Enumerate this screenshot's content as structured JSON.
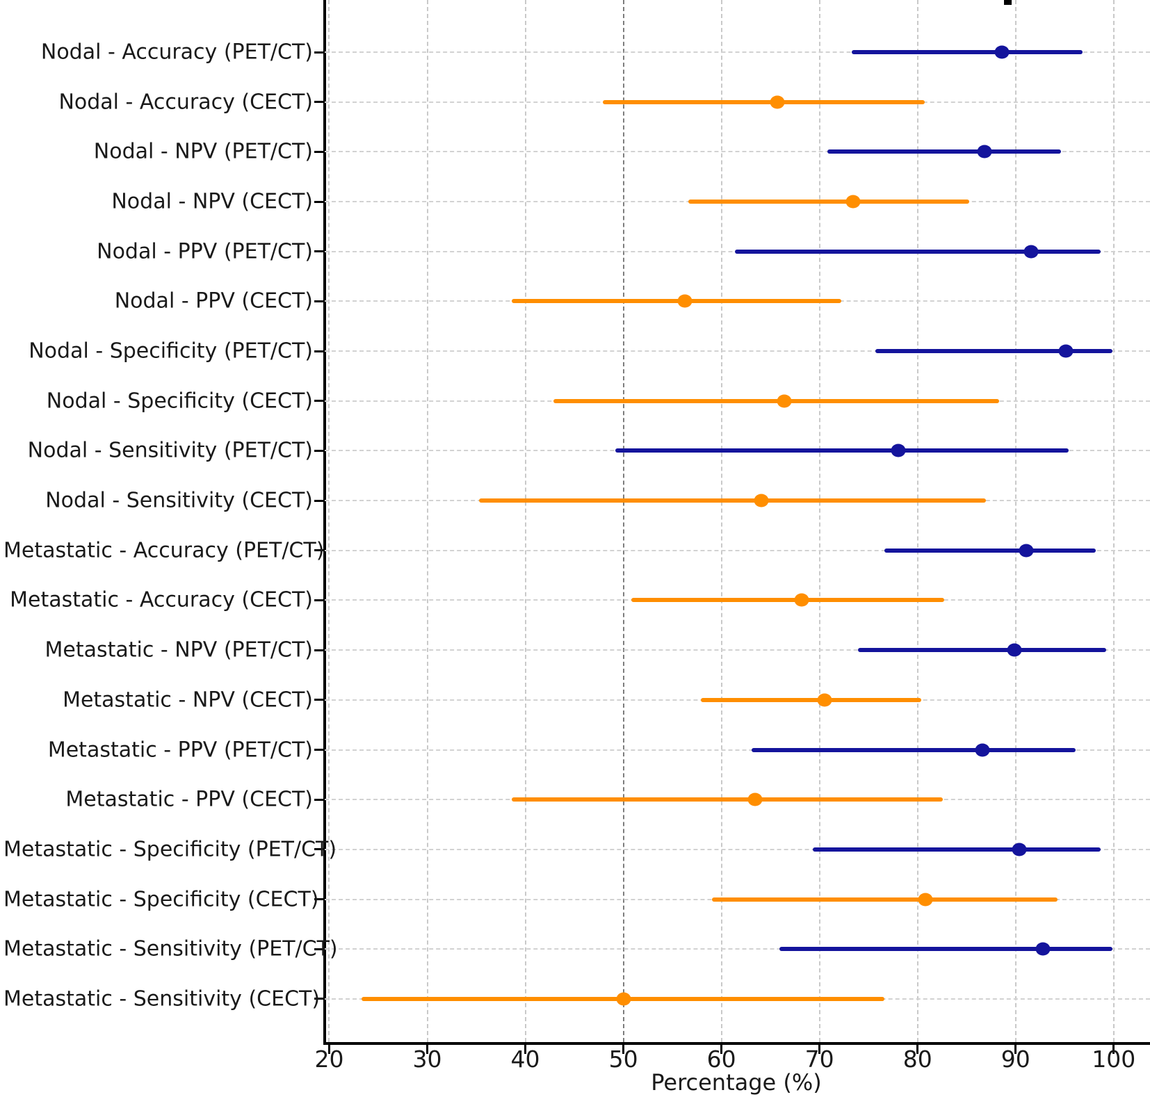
{
  "chart_data": {
    "type": "forest_dot_ci",
    "xlabel": "Percentage (%)",
    "xlim": [
      19.4,
      103.7
    ],
    "xticks": [
      20,
      30,
      40,
      50,
      60,
      70,
      80,
      90,
      100
    ],
    "refline_x": 50,
    "grid": true,
    "legend_position": "cropped-top-right",
    "colors": {
      "PET/CT": "#14149c",
      "CECT": "#ff8e00"
    },
    "rows": [
      {
        "label": "Nodal - Accuracy (PET/CT)",
        "modality": "PET/CT",
        "value": 88.6,
        "ci": [
          73.3,
          96.8
        ]
      },
      {
        "label": "Nodal - Accuracy (CECT)",
        "modality": "CECT",
        "value": 65.7,
        "ci": [
          47.9,
          80.7
        ]
      },
      {
        "label": "Nodal - NPV (PET/CT)",
        "modality": "PET/CT",
        "value": 86.8,
        "ci": [
          70.8,
          94.6
        ]
      },
      {
        "label": "Nodal - NPV (CECT)",
        "modality": "CECT",
        "value": 73.4,
        "ci": [
          56.6,
          85.3
        ]
      },
      {
        "label": "Nodal - PPV (PET/CT)",
        "modality": "PET/CT",
        "value": 91.6,
        "ci": [
          61.4,
          98.7
        ]
      },
      {
        "label": "Nodal - PPV (CECT)",
        "modality": "CECT",
        "value": 56.3,
        "ci": [
          38.6,
          72.2
        ]
      },
      {
        "label": "Nodal - Specificity (PET/CT)",
        "modality": "PET/CT",
        "value": 95.1,
        "ci": [
          75.7,
          99.9
        ]
      },
      {
        "label": "Nodal - Specificity (CECT)",
        "modality": "CECT",
        "value": 66.4,
        "ci": [
          42.9,
          88.3
        ]
      },
      {
        "label": "Nodal - Sensitivity (PET/CT)",
        "modality": "PET/CT",
        "value": 78.0,
        "ci": [
          49.2,
          95.4
        ]
      },
      {
        "label": "Nodal - Sensitivity (CECT)",
        "modality": "CECT",
        "value": 64.1,
        "ci": [
          35.3,
          87.0
        ]
      },
      {
        "label": "Metastatic - Accuracy (PET/CT)",
        "modality": "PET/CT",
        "value": 91.1,
        "ci": [
          76.6,
          98.2
        ]
      },
      {
        "label": "Metastatic - Accuracy (CECT)",
        "modality": "CECT",
        "value": 68.2,
        "ci": [
          50.8,
          82.7
        ]
      },
      {
        "label": "Metastatic - NPV (PET/CT)",
        "modality": "PET/CT",
        "value": 89.9,
        "ci": [
          73.9,
          99.2
        ]
      },
      {
        "label": "Metastatic - NPV (CECT)",
        "modality": "CECT",
        "value": 70.5,
        "ci": [
          57.9,
          80.4
        ]
      },
      {
        "label": "Metastatic - PPV (PET/CT)",
        "modality": "PET/CT",
        "value": 86.6,
        "ci": [
          63.1,
          96.1
        ]
      },
      {
        "label": "Metastatic - PPV (CECT)",
        "modality": "CECT",
        "value": 63.4,
        "ci": [
          38.6,
          82.6
        ]
      },
      {
        "label": "Metastatic - Specificity (PET/CT)",
        "modality": "PET/CT",
        "value": 90.4,
        "ci": [
          69.3,
          98.7
        ]
      },
      {
        "label": "Metastatic - Specificity (CECT)",
        "modality": "CECT",
        "value": 80.8,
        "ci": [
          59.0,
          94.3
        ]
      },
      {
        "label": "Metastatic - Sensitivity (PET/CT)",
        "modality": "PET/CT",
        "value": 92.8,
        "ci": [
          65.9,
          99.9
        ]
      },
      {
        "label": "Metastatic - Sensitivity (CECT)",
        "modality": "CECT",
        "value": 50.0,
        "ci": [
          23.3,
          76.6
        ]
      }
    ]
  }
}
